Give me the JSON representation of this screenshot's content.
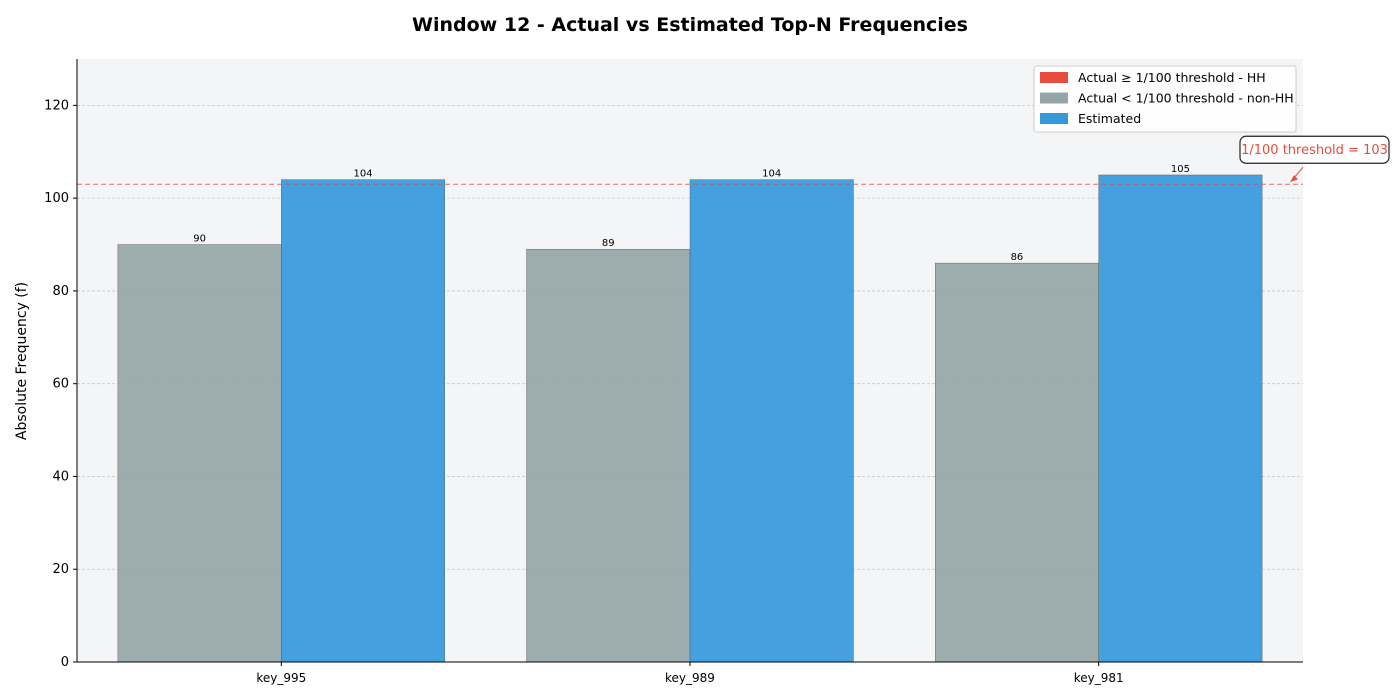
{
  "chart_data": {
    "type": "bar",
    "title": "Window 12 - Actual vs Estimated Top-N Frequencies",
    "xlabel": "",
    "ylabel": "Absolute Frequency (f)",
    "categories": [
      "key_995",
      "key_989",
      "key_981"
    ],
    "series": [
      {
        "name": "Actual",
        "values": [
          90,
          89,
          86
        ],
        "colors": [
          "#95a5a6",
          "#95a5a6",
          "#95a5a6"
        ]
      },
      {
        "name": "Estimated",
        "values": [
          104,
          104,
          105
        ],
        "colors": [
          "#3498db",
          "#3498db",
          "#3498db"
        ]
      }
    ],
    "ylim": [
      0,
      130
    ],
    "yticks": [
      0,
      20,
      40,
      60,
      80,
      100,
      120
    ],
    "grid": true,
    "legend": {
      "position": "top-right",
      "entries": [
        {
          "label": "Actual ≥ 1/100 threshold - HH",
          "color": "#e74c3c"
        },
        {
          "label": "Actual < 1/100 threshold - non-HH",
          "color": "#95a5a6"
        },
        {
          "label": "Estimated",
          "color": "#3498db"
        }
      ]
    },
    "threshold": {
      "value": 103,
      "label": "1/100 threshold = 103",
      "color": "#e74c3c"
    },
    "colors": {
      "plot_background": "#f4f5f7",
      "axis": "#000000",
      "grid": "#c8c8c8"
    }
  }
}
